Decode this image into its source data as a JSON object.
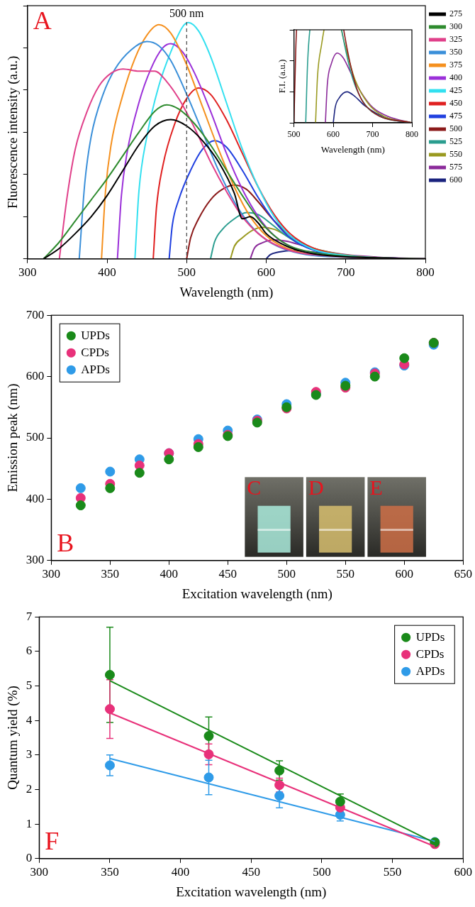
{
  "chart_data": [
    {
      "type": "line",
      "panel_label": "A",
      "x_label": "Wavelength (nm)",
      "y_label": "Fluorescence intensity (a.u.)",
      "xlim": [
        300,
        800
      ],
      "xticks": [
        300,
        400,
        500,
        600,
        700,
        800
      ],
      "ylim": [
        0,
        6
      ],
      "yticks": [
        0,
        1,
        2,
        3,
        4,
        5,
        6
      ],
      "tick_labels": "x",
      "grid": false,
      "legend": "right",
      "annotations": [
        {
          "text": "500 nm",
          "x": 500,
          "line_style": "dashed"
        }
      ],
      "series": [
        {
          "name": "275",
          "color": "#000000",
          "x": [
            320,
            340,
            360,
            380,
            400,
            420,
            440,
            460,
            480,
            500,
            520,
            540,
            560,
            570,
            580,
            590,
            600,
            620,
            640,
            660,
            700,
            750,
            800
          ],
          "values": [
            0,
            0.25,
            0.6,
            1.0,
            1.5,
            2.1,
            2.7,
            3.15,
            3.3,
            3.15,
            2.8,
            2.3,
            1.55,
            0.95,
            1.0,
            0.85,
            0.6,
            0.35,
            0.2,
            0.12,
            0.05,
            0.02,
            0
          ]
        },
        {
          "name": "300",
          "color": "#2e8b2e",
          "x": [
            320,
            340,
            360,
            380,
            400,
            420,
            440,
            460,
            475,
            490,
            510,
            530,
            550,
            570,
            590,
            610,
            630,
            660,
            700,
            750,
            800
          ],
          "values": [
            0,
            0.4,
            0.9,
            1.4,
            1.9,
            2.45,
            3.0,
            3.5,
            3.65,
            3.55,
            3.2,
            2.7,
            2.1,
            1.5,
            0.95,
            0.55,
            0.3,
            0.15,
            0.06,
            0.02,
            0
          ]
        },
        {
          "name": "325",
          "color": "#e0408a",
          "x": [
            340,
            350,
            360,
            375,
            390,
            405,
            420,
            440,
            460,
            475,
            490,
            510,
            530,
            550,
            570,
            590,
            610,
            640,
            680,
            740,
            800
          ],
          "values": [
            0,
            1.5,
            2.6,
            3.5,
            4.1,
            4.4,
            4.5,
            4.45,
            4.45,
            4.2,
            3.8,
            3.1,
            2.3,
            1.6,
            1.0,
            0.6,
            0.35,
            0.15,
            0.07,
            0.02,
            0
          ]
        },
        {
          "name": "350",
          "color": "#3a8fd9",
          "x": [
            365,
            372,
            380,
            395,
            410,
            430,
            450,
            465,
            480,
            500,
            520,
            540,
            560,
            580,
            600,
            620,
            650,
            700,
            800
          ],
          "values": [
            0,
            1.8,
            2.9,
            3.9,
            4.5,
            4.95,
            5.15,
            5.05,
            4.7,
            3.9,
            3.0,
            2.1,
            1.35,
            0.8,
            0.45,
            0.25,
            0.1,
            0.04,
            0
          ]
        },
        {
          "name": "375",
          "color": "#f5901e",
          "x": [
            393,
            398,
            405,
            420,
            435,
            450,
            465,
            480,
            500,
            520,
            540,
            560,
            580,
            600,
            620,
            650,
            700,
            800
          ],
          "values": [
            0,
            1.6,
            2.7,
            3.9,
            4.75,
            5.3,
            5.55,
            5.35,
            4.6,
            3.6,
            2.6,
            1.7,
            1.0,
            0.55,
            0.3,
            0.12,
            0.04,
            0
          ]
        },
        {
          "name": "400",
          "color": "#9b30d9",
          "x": [
            413,
            418,
            425,
            440,
            455,
            470,
            480,
            495,
            510,
            530,
            550,
            570,
            590,
            610,
            630,
            660,
            700,
            800
          ],
          "values": [
            0,
            1.5,
            2.5,
            3.7,
            4.5,
            5.0,
            5.1,
            4.9,
            4.4,
            3.5,
            2.5,
            1.65,
            1.0,
            0.55,
            0.3,
            0.12,
            0.05,
            0
          ]
        },
        {
          "name": "425",
          "color": "#33e0f0",
          "x": [
            435,
            440,
            450,
            465,
            480,
            495,
            502,
            515,
            530,
            550,
            570,
            590,
            610,
            630,
            660,
            700,
            750,
            800
          ],
          "values": [
            0,
            1.6,
            2.9,
            4.1,
            4.9,
            5.5,
            5.6,
            5.4,
            4.8,
            3.7,
            2.6,
            1.7,
            1.0,
            0.55,
            0.22,
            0.08,
            0.02,
            0
          ]
        },
        {
          "name": "450",
          "color": "#e02020",
          "x": [
            458,
            462,
            470,
            485,
            500,
            515,
            530,
            550,
            570,
            590,
            610,
            630,
            660,
            700,
            750,
            800
          ],
          "values": [
            0,
            1.2,
            2.2,
            3.2,
            3.8,
            4.05,
            3.9,
            3.3,
            2.5,
            1.7,
            1.05,
            0.6,
            0.25,
            0.08,
            0.02,
            0
          ]
        },
        {
          "name": "475",
          "color": "#2040e0",
          "x": [
            478,
            482,
            490,
            505,
            520,
            535,
            550,
            570,
            590,
            610,
            630,
            660,
            700,
            800
          ],
          "values": [
            0,
            0.8,
            1.4,
            2.1,
            2.6,
            2.8,
            2.65,
            2.1,
            1.45,
            0.9,
            0.5,
            0.2,
            0.07,
            0
          ]
        },
        {
          "name": "500",
          "color": "#8b1a1a",
          "x": [
            500,
            505,
            515,
            530,
            545,
            560,
            575,
            590,
            610,
            630,
            660,
            700,
            800
          ],
          "values": [
            0,
            0.5,
            0.95,
            1.4,
            1.65,
            1.75,
            1.65,
            1.35,
            0.9,
            0.55,
            0.22,
            0.07,
            0
          ]
        },
        {
          "name": "525",
          "color": "#2a9d8f",
          "x": [
            530,
            535,
            545,
            560,
            575,
            590,
            605,
            625,
            650,
            680,
            720,
            800
          ],
          "values": [
            0,
            0.4,
            0.7,
            0.95,
            1.1,
            1.05,
            0.85,
            0.55,
            0.28,
            0.12,
            0.04,
            0
          ]
        },
        {
          "name": "550",
          "color": "#9a9a20",
          "x": [
            555,
            560,
            570,
            585,
            595,
            610,
            630,
            655,
            690,
            730,
            800
          ],
          "values": [
            0,
            0.3,
            0.5,
            0.7,
            0.75,
            0.7,
            0.5,
            0.28,
            0.12,
            0.04,
            0
          ]
        },
        {
          "name": "575",
          "color": "#8b2a9a",
          "x": [
            580,
            585,
            595,
            610,
            625,
            645,
            670,
            700,
            740,
            800
          ],
          "values": [
            0,
            0.25,
            0.38,
            0.45,
            0.42,
            0.32,
            0.2,
            0.1,
            0.04,
            0
          ]
        },
        {
          "name": "600",
          "color": "#1a237e",
          "x": [
            600,
            605,
            615,
            635,
            655,
            680,
            710,
            750,
            800
          ],
          "values": [
            0,
            0.1,
            0.16,
            0.2,
            0.17,
            0.11,
            0.06,
            0.02,
            0
          ]
        }
      ],
      "inset": {
        "type": "line",
        "x_label": "Wavelength (nm)",
        "y_label": "F.I. (a.u.)",
        "xlim": [
          500,
          800
        ],
        "xticks": [
          500,
          600,
          700,
          800
        ],
        "ylim": [
          0,
          0.6
        ],
        "yticks": [
          0,
          0.2,
          0.4,
          0.6
        ],
        "tick_labels": "x",
        "grid": false,
        "series": [
          {
            "color": "#8b1a1a",
            "x": [
              500,
              505,
              515,
              530,
              545,
              560,
              575,
              590,
              610,
              630,
              660,
              700,
              800
            ],
            "values": [
              0,
              0.5,
              0.95,
              1.4,
              1.65,
              1.75,
              1.65,
              1.35,
              0.9,
              0.55,
              0.22,
              0.07,
              0
            ]
          },
          {
            "color": "#2a9d8f",
            "x": [
              530,
              535,
              545,
              560,
              575,
              590,
              605,
              625,
              650,
              680,
              720,
              800
            ],
            "values": [
              0,
              0.4,
              0.7,
              0.95,
              1.1,
              1.05,
              0.85,
              0.55,
              0.28,
              0.12,
              0.04,
              0
            ]
          },
          {
            "color": "#9a9a20",
            "x": [
              555,
              560,
              570,
              585,
              595,
              610,
              630,
              655,
              690,
              730,
              800
            ],
            "values": [
              0,
              0.3,
              0.5,
              0.7,
              0.75,
              0.7,
              0.5,
              0.28,
              0.12,
              0.04,
              0
            ]
          },
          {
            "color": "#8b2a9a",
            "x": [
              580,
              585,
              595,
              610,
              625,
              645,
              670,
              700,
              740,
              800
            ],
            "values": [
              0,
              0.25,
              0.38,
              0.45,
              0.42,
              0.32,
              0.2,
              0.1,
              0.04,
              0
            ]
          },
          {
            "color": "#1a237e",
            "x": [
              600,
              605,
              615,
              635,
              655,
              680,
              710,
              750,
              800
            ],
            "values": [
              0,
              0.1,
              0.16,
              0.2,
              0.17,
              0.11,
              0.06,
              0.02,
              0
            ]
          }
        ]
      }
    },
    {
      "type": "scatter",
      "panel_label": "B",
      "image_labels": [
        "C",
        "D",
        "E"
      ],
      "x_label": "Excitation wavelength (nm)",
      "y_label": "Emission peak (nm)",
      "xlim": [
        300,
        650
      ],
      "xticks": [
        300,
        350,
        400,
        450,
        500,
        550,
        600,
        650
      ],
      "ylim": [
        300,
        700
      ],
      "yticks": [
        300,
        400,
        500,
        600,
        700
      ],
      "grid": false,
      "legend": "upper left",
      "marker": "circle",
      "series": [
        {
          "name": "UPDs",
          "color": "#1a8a1a",
          "x": [
            325,
            350,
            375,
            400,
            425,
            450,
            475,
            500,
            525,
            550,
            575,
            600,
            625
          ],
          "values": [
            390,
            418,
            443,
            465,
            485,
            503,
            525,
            550,
            570,
            585,
            600,
            630,
            655
          ]
        },
        {
          "name": "CPDs",
          "color": "#e8317a",
          "x": [
            325,
            350,
            375,
            400,
            425,
            450,
            475,
            500,
            525,
            550,
            575,
            600,
            625
          ],
          "values": [
            402,
            425,
            455,
            475,
            490,
            505,
            528,
            548,
            575,
            582,
            605,
            620,
            655
          ]
        },
        {
          "name": "APDs",
          "color": "#2f9be8",
          "x": [
            325,
            350,
            375,
            400,
            425,
            450,
            475,
            500,
            525,
            550,
            575,
            600,
            625
          ],
          "values": [
            418,
            445,
            465,
            475,
            498,
            512,
            530,
            555,
            572,
            590,
            607,
            618,
            652
          ]
        }
      ]
    },
    {
      "type": "scatter",
      "panel_label": "F",
      "x_label": "Excitation wavelength (nm)",
      "y_label": "Quantum yield (%)",
      "xlim": [
        300,
        600
      ],
      "xticks": [
        300,
        350,
        400,
        450,
        500,
        550,
        600
      ],
      "ylim": [
        0,
        7
      ],
      "yticks": [
        0,
        1,
        2,
        3,
        4,
        5,
        6,
        7
      ],
      "grid": false,
      "legend": "upper right",
      "marker": "circle",
      "series": [
        {
          "name": "UPDs",
          "color": "#1a8a1a",
          "x": [
            350,
            420,
            470,
            513,
            580
          ],
          "values": [
            5.32,
            3.55,
            2.55,
            1.65,
            0.47
          ],
          "errors": [
            1.38,
            0.55,
            0.28,
            0.22,
            0.05
          ],
          "fit": {
            "x": [
              350,
              580
            ],
            "values": [
              5.15,
              0.45
            ]
          }
        },
        {
          "name": "CPDs",
          "color": "#e8317a",
          "x": [
            350,
            420,
            470,
            513,
            580
          ],
          "values": [
            4.33,
            3.02,
            2.13,
            1.48,
            0.42
          ],
          "errors": [
            0.85,
            0.3,
            0.2,
            0.15,
            0.05
          ],
          "fit": {
            "x": [
              350,
              580
            ],
            "values": [
              4.22,
              0.35
            ]
          }
        },
        {
          "name": "APDs",
          "color": "#2f9be8",
          "x": [
            350,
            420,
            470,
            513,
            580
          ],
          "values": [
            2.7,
            2.35,
            1.82,
            1.27,
            0.48
          ],
          "errors": [
            0.3,
            0.5,
            0.35,
            0.18,
            0.05
          ],
          "fit": {
            "x": [
              350,
              580
            ],
            "values": [
              2.9,
              0.5
            ]
          }
        }
      ]
    }
  ]
}
